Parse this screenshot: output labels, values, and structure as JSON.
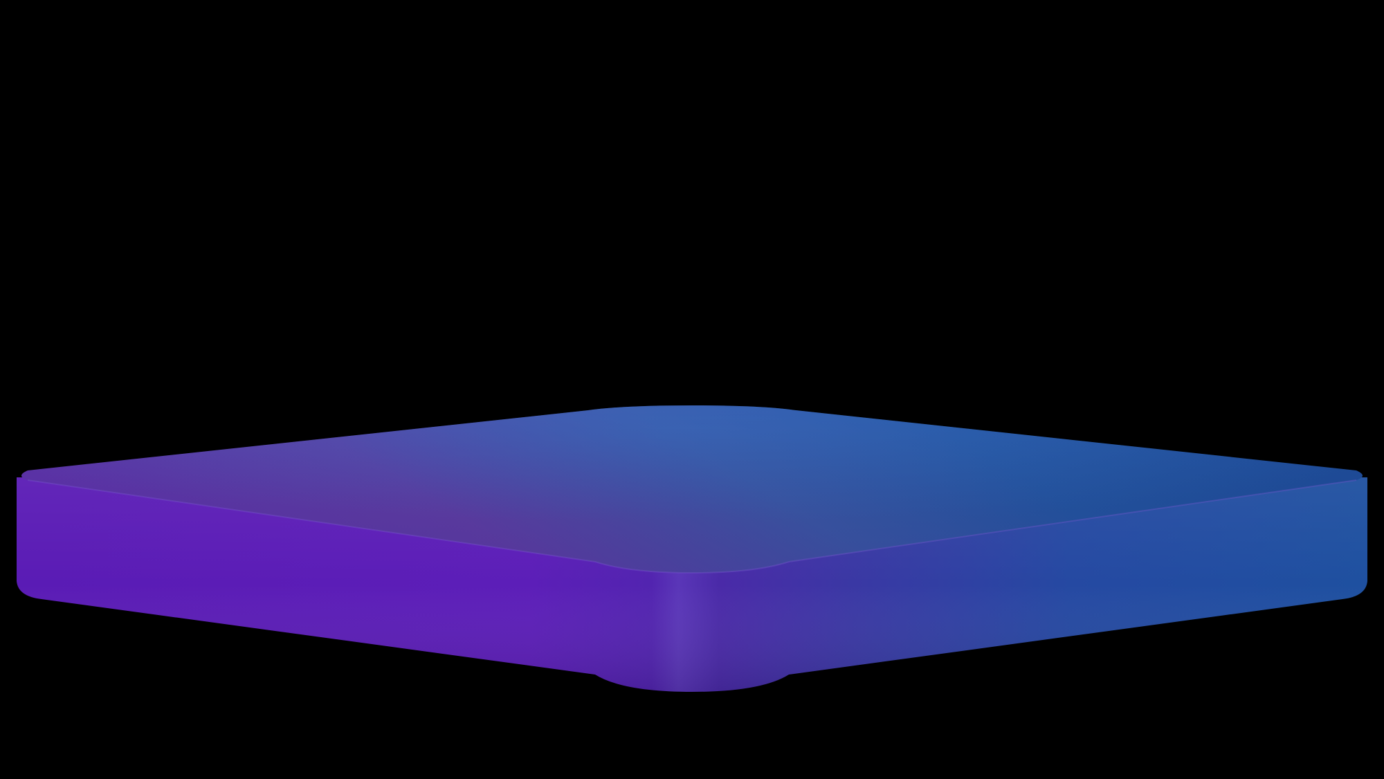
{
  "scene": {
    "background_color": "#000000",
    "subject": "platform-slab-icon",
    "colors": {
      "purple": "#5a1ab8",
      "violet_top": "#6a3fae",
      "blue": "#2358a8",
      "deep_blue": "#1d4fa0",
      "highlight": "#6a44c8"
    }
  }
}
